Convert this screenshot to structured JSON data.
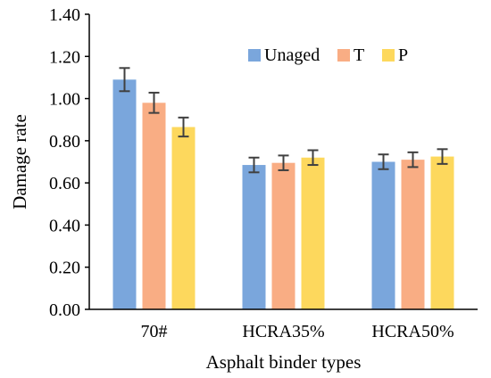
{
  "chart_data": {
    "type": "bar",
    "categories": [
      "70#",
      "HCRA35%",
      "HCRA50%"
    ],
    "series": [
      {
        "name": "Unaged",
        "color": "#7aa6dc",
        "values": [
          1.09,
          0.685,
          0.7
        ],
        "errors": [
          0.055,
          0.035,
          0.035
        ]
      },
      {
        "name": "T",
        "color": "#f9ad84",
        "values": [
          0.98,
          0.695,
          0.71
        ],
        "errors": [
          0.048,
          0.035,
          0.035
        ]
      },
      {
        "name": "P",
        "color": "#fdd85d",
        "values": [
          0.865,
          0.72,
          0.725
        ],
        "errors": [
          0.045,
          0.035,
          0.035
        ]
      }
    ],
    "xlabel": "Asphalt binder types",
    "ylabel": "Damage rate",
    "ylim": [
      0,
      1.4
    ],
    "yticks": [
      "0.00",
      "0.20",
      "0.40",
      "0.60",
      "0.80",
      "1.00",
      "1.20",
      "1.40"
    ],
    "grid": false,
    "legend_position": "top-right"
  }
}
